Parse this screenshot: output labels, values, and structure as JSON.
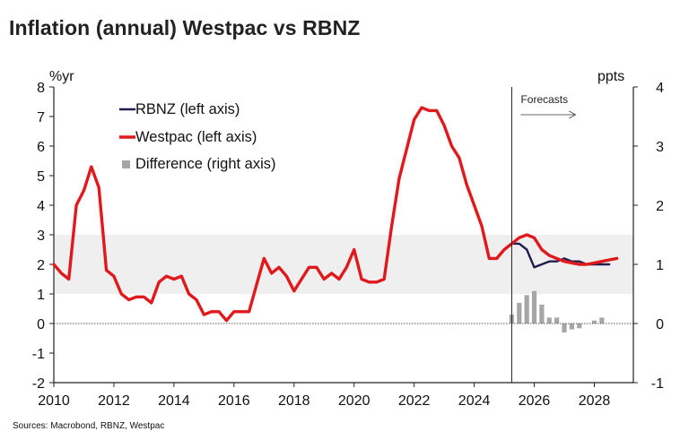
{
  "title": "Inflation (annual) Westpac vs RBNZ",
  "source": "Sources: Macrobond, RBNZ, Westpac",
  "chart_data": {
    "type": "line",
    "title": "Inflation (annual) Westpac vs RBNZ",
    "left_axis": {
      "label": "%yr",
      "ylim": [
        -2,
        8
      ],
      "ticks": [
        "8",
        "7",
        "6",
        "5",
        "4",
        "3",
        "2",
        "1",
        "0",
        "-1",
        "-2"
      ]
    },
    "right_axis": {
      "label": "ppts",
      "ylim": [
        -1,
        4
      ],
      "ticks": [
        "4",
        "3",
        "2",
        "1",
        "0",
        "-1"
      ]
    },
    "x_axis": {
      "xlim": [
        2010,
        2029.3
      ],
      "ticks": [
        "2010",
        "2012",
        "2014",
        "2016",
        "2018",
        "2020",
        "2022",
        "2024",
        "2026",
        "2028"
      ]
    },
    "target_band": {
      "low": 1,
      "high": 3
    },
    "forecast_start": 2025.25,
    "forecast_label": "Forecasts",
    "legend": [
      {
        "key": "rbnz",
        "label": "RBNZ (left axis)",
        "color": "#1f1f4f"
      },
      {
        "key": "westpac",
        "label": "Westpac (left axis)",
        "color": "#e0191c"
      },
      {
        "key": "difference",
        "label": "Difference (right axis)",
        "color": "#a6a6a6"
      }
    ],
    "series": [
      {
        "name": "Westpac (left axis)",
        "axis": "left",
        "color": "#e0191c",
        "x": [
          2010.0,
          2010.25,
          2010.5,
          2010.75,
          2011.0,
          2011.25,
          2011.5,
          2011.75,
          2012.0,
          2012.25,
          2012.5,
          2012.75,
          2013.0,
          2013.25,
          2013.5,
          2013.75,
          2014.0,
          2014.25,
          2014.5,
          2014.75,
          2015.0,
          2015.25,
          2015.5,
          2015.75,
          2016.0,
          2016.25,
          2016.5,
          2016.75,
          2017.0,
          2017.25,
          2017.5,
          2017.75,
          2018.0,
          2018.25,
          2018.5,
          2018.75,
          2019.0,
          2019.25,
          2019.5,
          2019.75,
          2020.0,
          2020.25,
          2020.5,
          2020.75,
          2021.0,
          2021.25,
          2021.5,
          2021.75,
          2022.0,
          2022.25,
          2022.5,
          2022.75,
          2023.0,
          2023.25,
          2023.5,
          2023.75,
          2024.0,
          2024.25,
          2024.5,
          2024.75,
          2025.0,
          2025.25,
          2025.5,
          2025.75,
          2026.0,
          2026.25,
          2026.5,
          2026.75,
          2027.0,
          2027.25,
          2027.5,
          2027.75,
          2028.0,
          2028.25,
          2028.5,
          2028.75
        ],
        "values": [
          2.0,
          1.7,
          1.5,
          4.0,
          4.5,
          5.3,
          4.6,
          1.8,
          1.6,
          1.0,
          0.8,
          0.9,
          0.9,
          0.7,
          1.4,
          1.6,
          1.5,
          1.6,
          1.0,
          0.8,
          0.3,
          0.4,
          0.4,
          0.1,
          0.4,
          0.4,
          0.4,
          1.3,
          2.2,
          1.7,
          1.9,
          1.6,
          1.1,
          1.5,
          1.9,
          1.9,
          1.5,
          1.7,
          1.5,
          1.9,
          2.5,
          1.5,
          1.4,
          1.4,
          1.5,
          3.3,
          4.9,
          5.9,
          6.9,
          7.3,
          7.2,
          7.2,
          6.7,
          6.0,
          5.6,
          4.7,
          4.0,
          3.3,
          2.2,
          2.2,
          2.5,
          2.7,
          2.9,
          3.0,
          2.9,
          2.5,
          2.3,
          2.2,
          2.1,
          2.05,
          2.0,
          2.0,
          2.05,
          2.1,
          2.15,
          2.2
        ]
      },
      {
        "name": "RBNZ (left axis)",
        "axis": "left",
        "color": "#1f1f4f",
        "x": [
          2024.75,
          2025.0,
          2025.25,
          2025.5,
          2025.75,
          2026.0,
          2026.25,
          2026.5,
          2026.75,
          2027.0,
          2027.25,
          2027.5,
          2027.75,
          2028.0,
          2028.25,
          2028.5
        ],
        "values": [
          2.2,
          2.5,
          2.7,
          2.7,
          2.5,
          1.9,
          2.0,
          2.1,
          2.1,
          2.2,
          2.1,
          2.1,
          2.0,
          2.0,
          2.0,
          2.0
        ]
      },
      {
        "name": "Difference (right axis)",
        "axis": "right",
        "type": "bar",
        "color": "#a6a6a6",
        "x": [
          2025.25,
          2025.5,
          2025.75,
          2026.0,
          2026.25,
          2026.5,
          2026.75,
          2027.0,
          2027.25,
          2027.5,
          2027.75,
          2028.0,
          2028.25,
          2028.5
        ],
        "values": [
          0.15,
          0.35,
          0.48,
          0.55,
          0.32,
          0.1,
          0.1,
          -0.15,
          -0.1,
          -0.08,
          0.0,
          0.05,
          0.1,
          0.0
        ]
      }
    ]
  }
}
